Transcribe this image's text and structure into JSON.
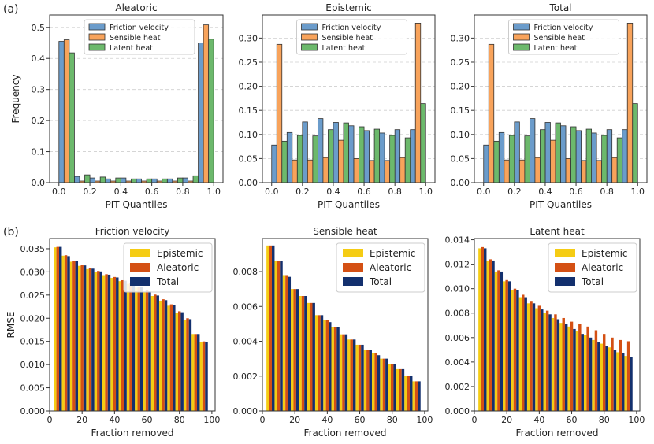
{
  "panel_labels": [
    "(a)",
    "(b)"
  ],
  "colors": {
    "friction": "#6b9ccb",
    "sensible": "#f8a35b",
    "latent": "#6cb96c",
    "epistemic": "#f5cc14",
    "aleatoric": "#d45014",
    "total": "#13306e",
    "grid": "#cfcfcf",
    "edge": "#333333"
  },
  "chart_data": [
    {
      "type": "bar",
      "title": "Aleatoric",
      "xlabel": "PIT Quantiles",
      "ylabel": "Frequency",
      "xlim": [
        -0.06,
        1.06
      ],
      "ylim": [
        0,
        0.54
      ],
      "x_ticks": [
        0.0,
        0.2,
        0.4,
        0.6,
        0.8,
        1.0
      ],
      "x_tick_labels": [
        "0.0",
        "0.2",
        "0.4",
        "0.6",
        "0.8",
        "1.0"
      ],
      "y_ticks": [
        0.0,
        0.1,
        0.2,
        0.3,
        0.4,
        0.5
      ],
      "y_tick_labels": [
        "0.0",
        "0.1",
        "0.2",
        "0.3",
        "0.4",
        "0.5"
      ],
      "grid": "y",
      "legend": "top-center",
      "bins": [
        0.05,
        0.15,
        0.25,
        0.35,
        0.45,
        0.55,
        0.65,
        0.75,
        0.85,
        0.95
      ],
      "series": [
        {
          "name": "Friction velocity",
          "values": [
            0.455,
            0.02,
            0.015,
            0.012,
            0.015,
            0.012,
            0.012,
            0.012,
            0.015,
            0.45
          ]
        },
        {
          "name": "Sensible heat",
          "values": [
            0.46,
            0.005,
            0.005,
            0.005,
            0.005,
            0.005,
            0.005,
            0.005,
            0.005,
            0.508
          ]
        },
        {
          "name": "Latent heat",
          "values": [
            0.418,
            0.025,
            0.018,
            0.015,
            0.012,
            0.012,
            0.012,
            0.015,
            0.022,
            0.462
          ]
        }
      ]
    },
    {
      "type": "bar",
      "title": "Epistemic",
      "xlabel": "PIT Quantiles",
      "ylabel": "",
      "xlim": [
        -0.06,
        1.06
      ],
      "ylim": [
        0,
        0.348
      ],
      "x_ticks": [
        0.0,
        0.2,
        0.4,
        0.6,
        0.8,
        1.0
      ],
      "x_tick_labels": [
        "0.0",
        "0.2",
        "0.4",
        "0.6",
        "0.8",
        "1.0"
      ],
      "y_ticks": [
        0.0,
        0.05,
        0.1,
        0.15,
        0.2,
        0.25,
        0.3
      ],
      "y_tick_labels": [
        "0.00",
        "0.05",
        "0.10",
        "0.15",
        "0.20",
        "0.25",
        "0.30"
      ],
      "grid": "y",
      "legend": "top-center",
      "bins": [
        0.05,
        0.15,
        0.25,
        0.35,
        0.45,
        0.55,
        0.65,
        0.75,
        0.85,
        0.95
      ],
      "series": [
        {
          "name": "Friction velocity",
          "values": [
            0.078,
            0.104,
            0.126,
            0.133,
            0.125,
            0.118,
            0.108,
            0.103,
            0.11,
            0.11
          ]
        },
        {
          "name": "Sensible heat",
          "values": [
            0.287,
            0.047,
            0.047,
            0.052,
            0.088,
            0.05,
            0.046,
            0.046,
            0.052,
            0.331
          ]
        },
        {
          "name": "Latent heat",
          "values": [
            0.086,
            0.098,
            0.097,
            0.11,
            0.124,
            0.116,
            0.111,
            0.098,
            0.093,
            0.164
          ]
        }
      ]
    },
    {
      "type": "bar",
      "title": "Total",
      "xlabel": "PIT Quantiles",
      "ylabel": "",
      "xlim": [
        -0.06,
        1.06
      ],
      "ylim": [
        0,
        0.348
      ],
      "x_ticks": [
        0.0,
        0.2,
        0.4,
        0.6,
        0.8,
        1.0
      ],
      "x_tick_labels": [
        "0.0",
        "0.2",
        "0.4",
        "0.6",
        "0.8",
        "1.0"
      ],
      "y_ticks": [
        0.0,
        0.05,
        0.1,
        0.15,
        0.2,
        0.25,
        0.3
      ],
      "y_tick_labels": [
        "0.00",
        "0.05",
        "0.10",
        "0.15",
        "0.20",
        "0.25",
        "0.30"
      ],
      "grid": "y",
      "legend": "top-center",
      "bins": [
        0.05,
        0.15,
        0.25,
        0.35,
        0.45,
        0.55,
        0.65,
        0.75,
        0.85,
        0.95
      ],
      "series": [
        {
          "name": "Friction velocity",
          "values": [
            0.078,
            0.104,
            0.126,
            0.133,
            0.125,
            0.118,
            0.108,
            0.103,
            0.11,
            0.11
          ]
        },
        {
          "name": "Sensible heat",
          "values": [
            0.287,
            0.047,
            0.047,
            0.052,
            0.088,
            0.05,
            0.046,
            0.046,
            0.052,
            0.331
          ]
        },
        {
          "name": "Latent heat",
          "values": [
            0.086,
            0.098,
            0.097,
            0.11,
            0.124,
            0.116,
            0.111,
            0.098,
            0.093,
            0.164
          ]
        }
      ]
    },
    {
      "type": "bar",
      "title": "Friction velocity",
      "xlabel": "Fraction removed",
      "ylabel": "RMSE",
      "xlim": [
        0,
        102
      ],
      "ylim": [
        0,
        0.0372
      ],
      "x_ticks": [
        0,
        20,
        40,
        60,
        80,
        100
      ],
      "x_tick_labels": [
        "0",
        "20",
        "40",
        "60",
        "80",
        "100"
      ],
      "y_ticks": [
        0,
        0.005,
        0.01,
        0.015,
        0.02,
        0.025,
        0.03,
        0.035
      ],
      "y_tick_labels": [
        "0.000",
        "0.005",
        "0.010",
        "0.015",
        "0.020",
        "0.025",
        "0.030",
        "0.035"
      ],
      "grid": "none",
      "legend": "top-right",
      "x": [
        5,
        10,
        15,
        20,
        25,
        30,
        35,
        40,
        45,
        50,
        55,
        60,
        65,
        70,
        75,
        80,
        85,
        90,
        95
      ],
      "series": [
        {
          "name": "Epistemic",
          "values": [
            0.0353,
            0.0335,
            0.0322,
            0.0313,
            0.0306,
            0.03,
            0.0293,
            0.0287,
            0.028,
            0.0274,
            0.0266,
            0.0257,
            0.0248,
            0.0238,
            0.0227,
            0.0212,
            0.0196,
            0.0166,
            0.0149
          ]
        },
        {
          "name": "Aleatoric",
          "values": [
            0.0354,
            0.0336,
            0.0324,
            0.0315,
            0.0308,
            0.0302,
            0.0295,
            0.0289,
            0.0282,
            0.0276,
            0.0268,
            0.026,
            0.0251,
            0.0241,
            0.023,
            0.0215,
            0.02,
            0.0166,
            0.015
          ]
        },
        {
          "name": "Total",
          "values": [
            0.0354,
            0.0334,
            0.0323,
            0.0314,
            0.0307,
            0.0301,
            0.0294,
            0.0288,
            0.0281,
            0.0275,
            0.0267,
            0.0258,
            0.0249,
            0.0239,
            0.0228,
            0.0213,
            0.0198,
            0.0166,
            0.0149
          ]
        }
      ]
    },
    {
      "type": "bar",
      "title": "Sensible heat",
      "xlabel": "Fraction removed",
      "ylabel": "",
      "xlim": [
        0,
        102
      ],
      "ylim": [
        0,
        0.0099
      ],
      "x_ticks": [
        0,
        20,
        40,
        60,
        80,
        100
      ],
      "x_tick_labels": [
        "0",
        "20",
        "40",
        "60",
        "80",
        "100"
      ],
      "y_ticks": [
        0,
        0.002,
        0.004,
        0.006,
        0.008
      ],
      "y_tick_labels": [
        "0.000",
        "0.002",
        "0.004",
        "0.006",
        "0.008"
      ],
      "grid": "none",
      "legend": "top-right",
      "x": [
        5,
        10,
        15,
        20,
        25,
        30,
        35,
        40,
        45,
        50,
        55,
        60,
        65,
        70,
        75,
        80,
        85,
        90,
        95
      ],
      "series": [
        {
          "name": "Epistemic",
          "values": [
            0.0095,
            0.0086,
            0.0078,
            0.007,
            0.0066,
            0.0062,
            0.0055,
            0.0052,
            0.0048,
            0.0044,
            0.0041,
            0.0038,
            0.0035,
            0.0033,
            0.003,
            0.0027,
            0.0024,
            0.002,
            0.0017
          ]
        },
        {
          "name": "Aleatoric",
          "values": [
            0.0095,
            0.0086,
            0.0078,
            0.007,
            0.0066,
            0.0062,
            0.0055,
            0.0052,
            0.0048,
            0.0044,
            0.0041,
            0.0038,
            0.0035,
            0.0033,
            0.003,
            0.0027,
            0.0024,
            0.002,
            0.0017
          ]
        },
        {
          "name": "Total",
          "values": [
            0.0095,
            0.0086,
            0.0077,
            0.007,
            0.0066,
            0.0062,
            0.0055,
            0.0051,
            0.0048,
            0.0044,
            0.0041,
            0.0038,
            0.0035,
            0.0032,
            0.003,
            0.0027,
            0.0024,
            0.002,
            0.0017
          ]
        }
      ]
    },
    {
      "type": "bar",
      "title": "Latent heat",
      "xlabel": "Fraction removed",
      "ylabel": "",
      "xlim": [
        0,
        102
      ],
      "ylim": [
        0,
        0.0141
      ],
      "x_ticks": [
        0,
        20,
        40,
        60,
        80,
        100
      ],
      "x_tick_labels": [
        "0",
        "20",
        "40",
        "60",
        "80",
        "100"
      ],
      "y_ticks": [
        0,
        0.002,
        0.004,
        0.006,
        0.008,
        0.01,
        0.012,
        0.014
      ],
      "y_tick_labels": [
        "0.000",
        "0.002",
        "0.004",
        "0.006",
        "0.008",
        "0.010",
        "0.012",
        "0.014"
      ],
      "grid": "none",
      "legend": "top-right",
      "x": [
        5,
        10,
        15,
        20,
        25,
        30,
        35,
        40,
        45,
        50,
        55,
        60,
        65,
        70,
        75,
        80,
        85,
        90,
        95
      ],
      "series": [
        {
          "name": "Epistemic",
          "values": [
            0.0133,
            0.0123,
            0.0114,
            0.0106,
            0.0099,
            0.0093,
            0.0088,
            0.0084,
            0.008,
            0.0076,
            0.0072,
            0.0069,
            0.0065,
            0.0062,
            0.0058,
            0.0055,
            0.0052,
            0.0048,
            0.0045
          ]
        },
        {
          "name": "Aleatoric",
          "values": [
            0.0134,
            0.0124,
            0.0115,
            0.0107,
            0.01,
            0.0095,
            0.009,
            0.0086,
            0.0082,
            0.0079,
            0.0076,
            0.0073,
            0.0071,
            0.0069,
            0.0066,
            0.0063,
            0.006,
            0.0058,
            0.0057
          ]
        },
        {
          "name": "Total",
          "values": [
            0.0133,
            0.0123,
            0.0114,
            0.0106,
            0.0099,
            0.0093,
            0.0088,
            0.0083,
            0.0079,
            0.0075,
            0.0071,
            0.0067,
            0.0063,
            0.006,
            0.0056,
            0.0053,
            0.005,
            0.0047,
            0.0044
          ]
        }
      ]
    }
  ]
}
